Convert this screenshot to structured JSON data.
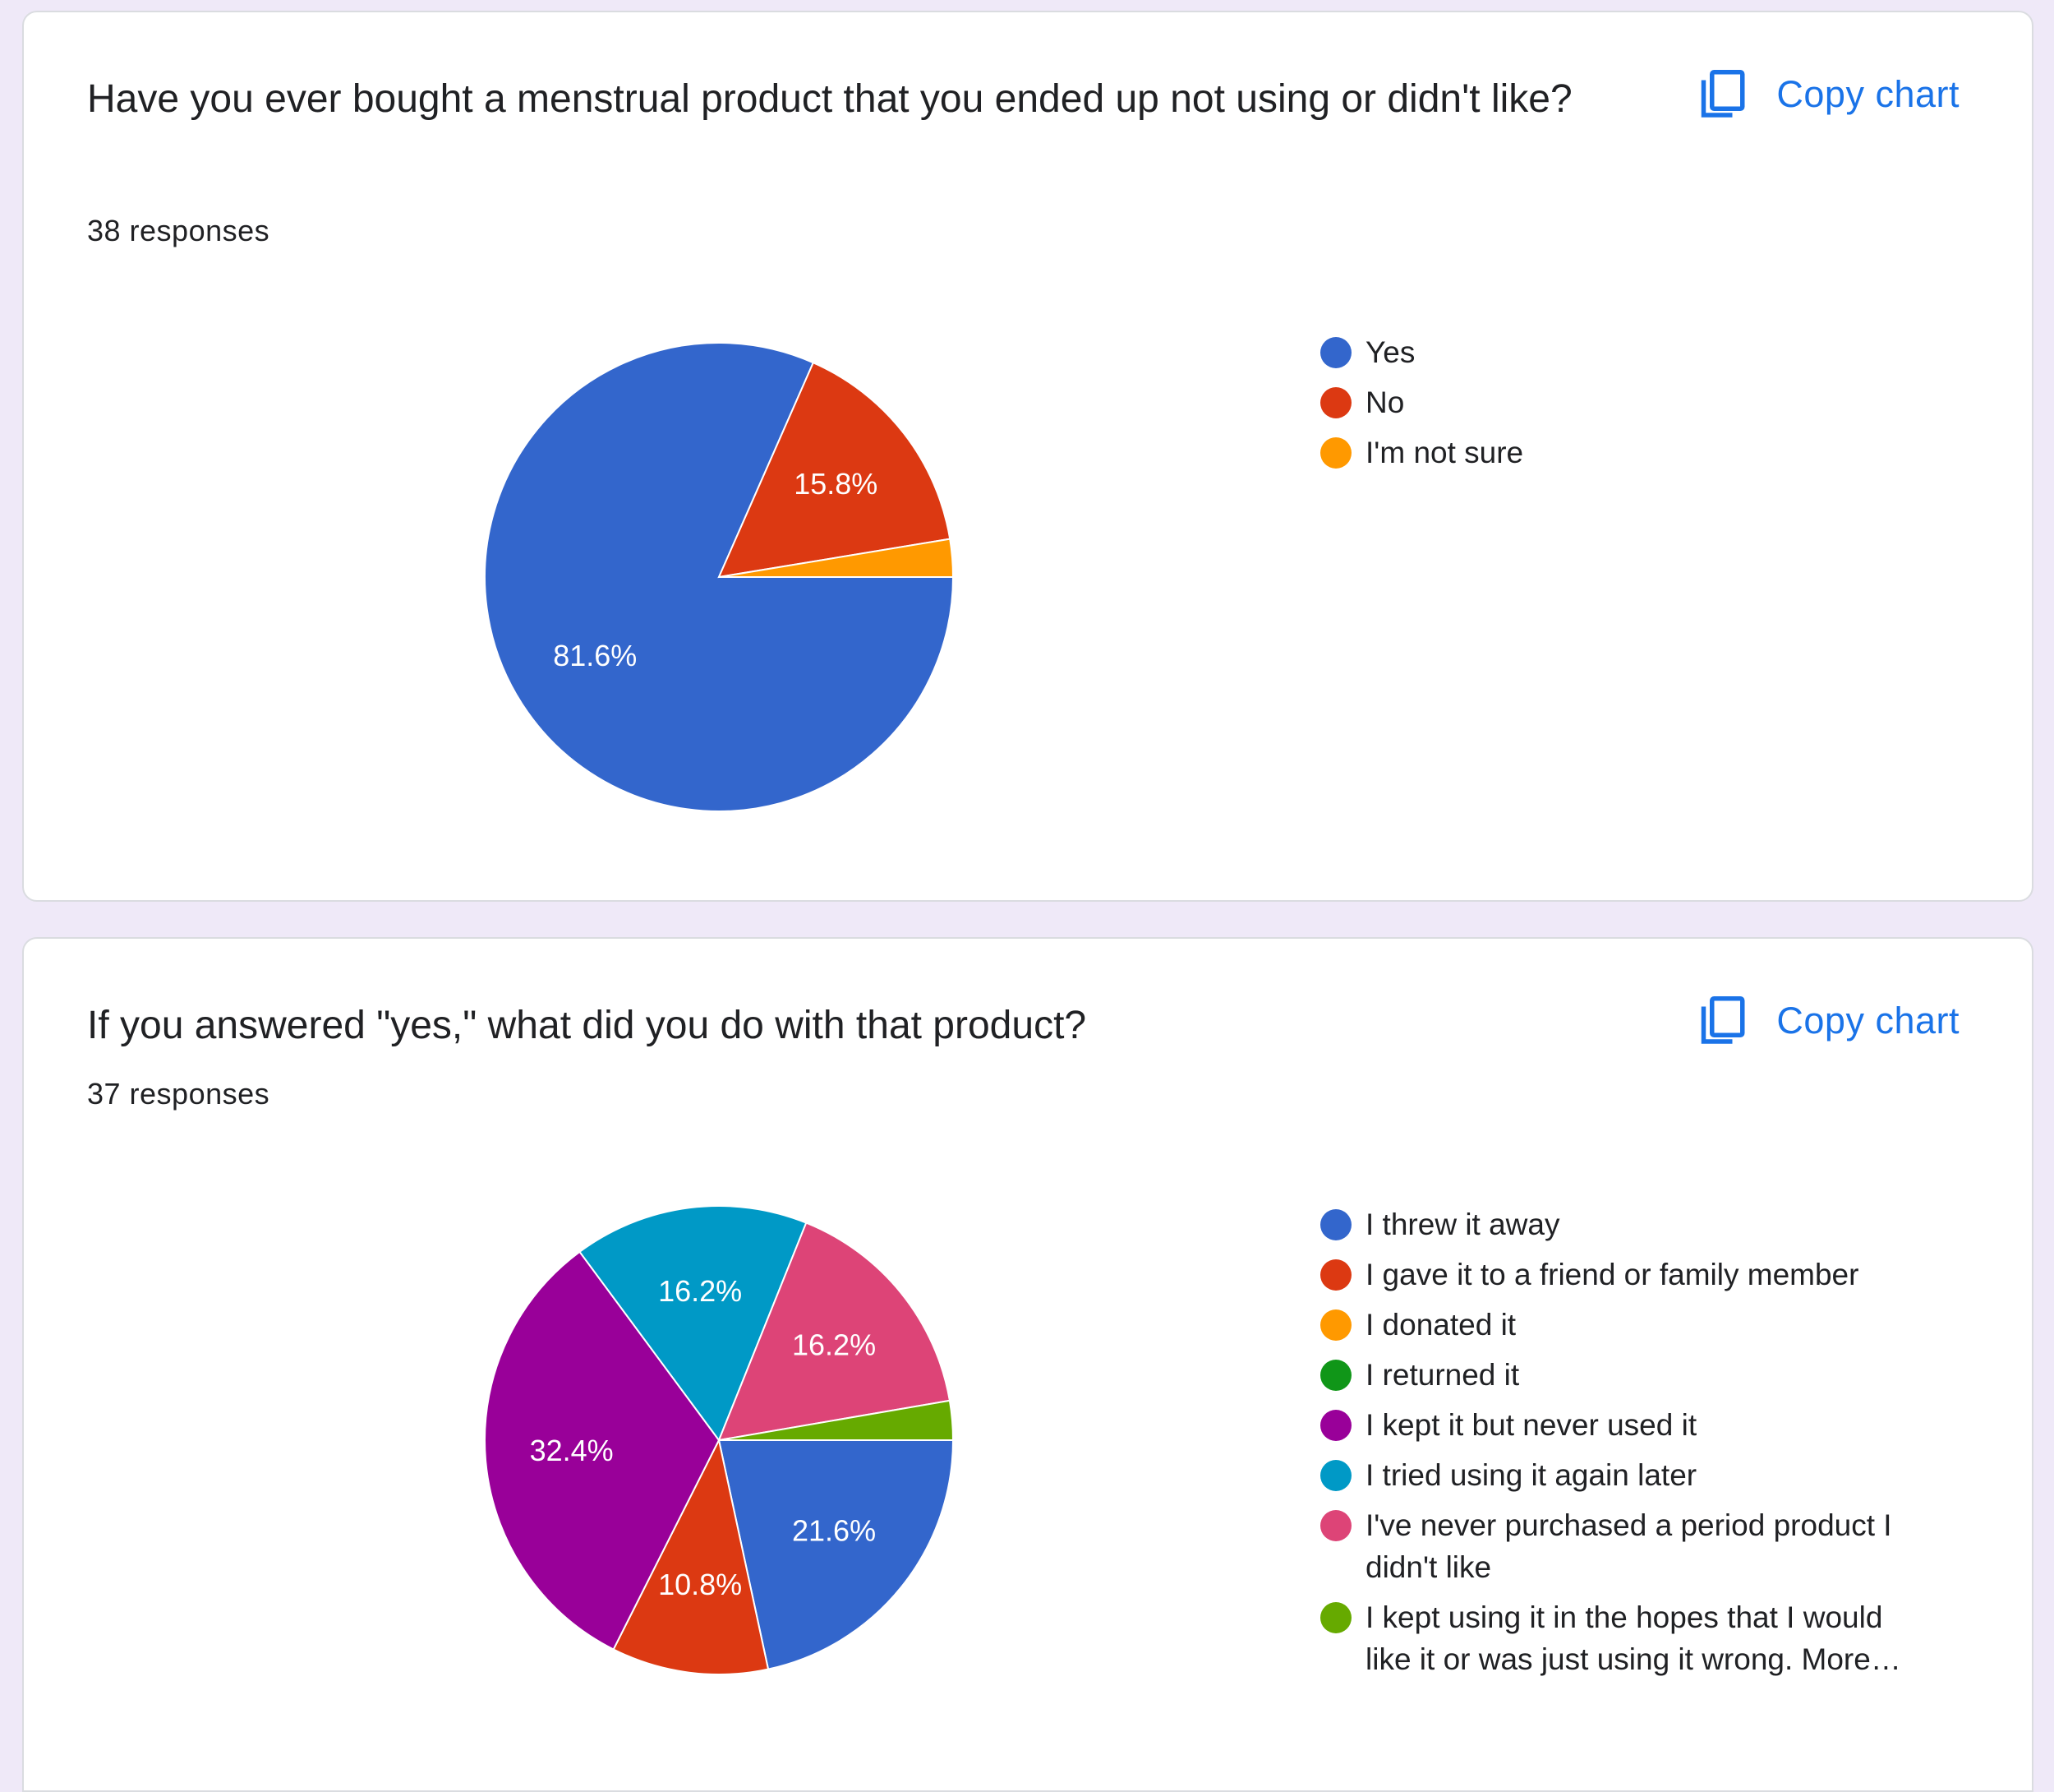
{
  "questions": [
    {
      "title": "Have you ever bought a menstrual product that you ended up not using or didn't like?",
      "responses": "38 responses",
      "copy_label": "Copy chart",
      "copy_icon": "copy-icon"
    },
    {
      "title": "If  you answered \"yes,\" what did you do with that product?",
      "responses": "37 responses",
      "copy_label": "Copy chart",
      "copy_icon": "copy-icon"
    }
  ],
  "chart_data": [
    {
      "type": "pie",
      "title": "Have you ever bought a menstrual product that you ended up not using or didn't like?",
      "categories": [
        "Yes",
        "No",
        "I'm not sure"
      ],
      "values": [
        81.6,
        15.8,
        2.6
      ],
      "colors": [
        "#3366cc",
        "#dc3912",
        "#ff9900"
      ],
      "labels": [
        "81.6%",
        "15.8%",
        ""
      ]
    },
    {
      "type": "pie",
      "title": "If  you answered \"yes,\" what did you do with that product?",
      "categories": [
        "I threw it away",
        "I gave it to a friend or family member",
        "I donated it",
        "I returned it",
        "I kept it but never used it",
        "I tried using it again later",
        "I've never purchased a period product I didn't like",
        "I kept using it in the hopes that I would like it or was just using it wrong. More…"
      ],
      "values": [
        21.6,
        10.8,
        0,
        0,
        32.4,
        16.2,
        16.2,
        2.7
      ],
      "colors": [
        "#3366cc",
        "#dc3912",
        "#ff9900",
        "#109618",
        "#990099",
        "#0099c6",
        "#dd4477",
        "#66aa00"
      ],
      "labels": [
        "21.6%",
        "10.8%",
        "",
        "",
        "32.4%",
        "16.2%",
        "16.2%",
        ""
      ]
    }
  ]
}
